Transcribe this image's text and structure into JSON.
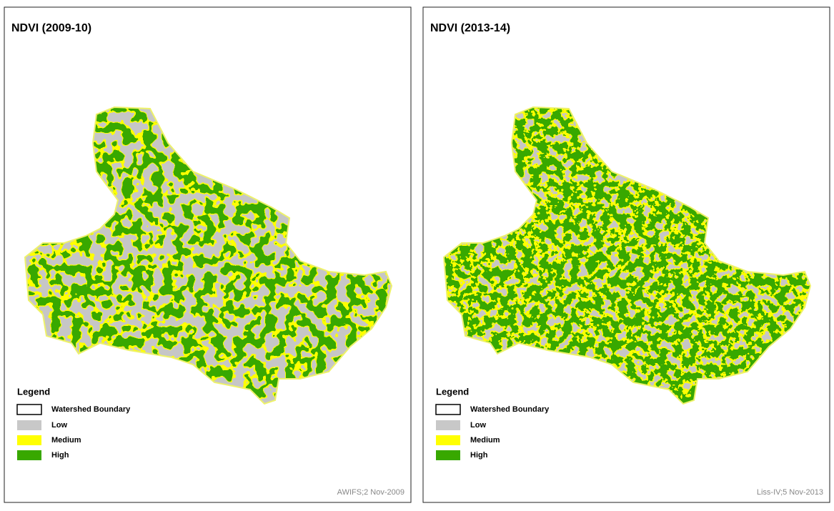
{
  "panels": [
    {
      "title": "NDVI (2009-10)",
      "legend": {
        "title": "Legend",
        "items": [
          {
            "label": "Watershed Boundary",
            "color": "#ffffff"
          },
          {
            "label": "Low",
            "color": "#c8c8c8"
          },
          {
            "label": "Medium",
            "color": "#ffff00"
          },
          {
            "label": "High",
            "color": "#38a800"
          }
        ]
      },
      "source": "AWIFS;2 Nov-2009"
    },
    {
      "title": "NDVI (2013-14)",
      "legend": {
        "title": "Legend",
        "items": [
          {
            "label": "Watershed Boundary",
            "color": "#ffffff"
          },
          {
            "label": "Low",
            "color": "#c8c8c8"
          },
          {
            "label": "Medium",
            "color": "#ffff00"
          },
          {
            "label": "High",
            "color": "#38a800"
          }
        ]
      },
      "source": "Liss-IV;5 Nov-2013"
    }
  ]
}
